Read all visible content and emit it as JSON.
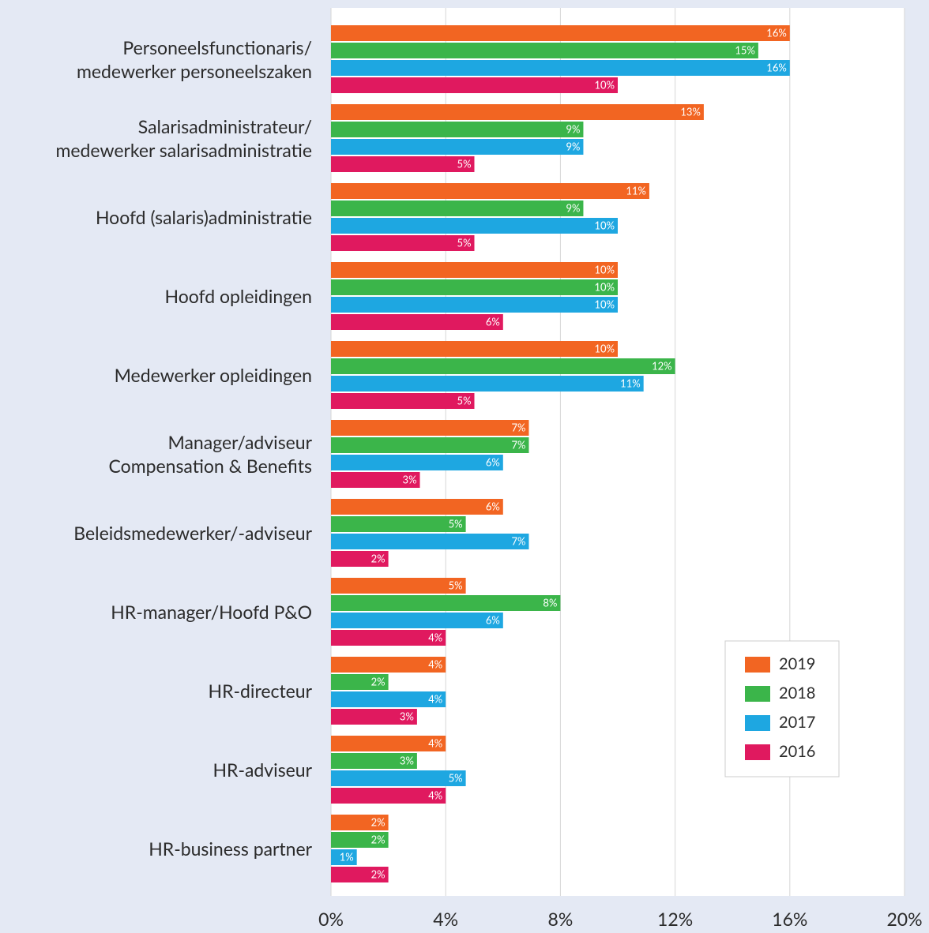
{
  "chart_data": {
    "type": "bar",
    "orientation": "horizontal",
    "categories": [
      "Personeelsfunctionaris/\nmedewerker personeelszaken",
      "Salarisadministrateur/\nmedewerker salarisadministratie",
      "Hoofd (salaris)administratie",
      "Hoofd opleidingen",
      "Medewerker opleidingen",
      "Manager/adviseur\nCompensation & Benefits",
      "Beleidsmedewerker/-adviseur",
      "HR-manager/Hoofd P&O",
      "HR-directeur",
      "HR-adviseur",
      "HR-business partner"
    ],
    "series": [
      {
        "name": "2019",
        "color": "#f26522",
        "values": [
          16.0,
          13.0,
          11.1,
          10.0,
          10.0,
          6.9,
          6.0,
          4.7,
          4.0,
          4.0,
          2.0
        ],
        "value_labels": [
          "16%",
          "13%",
          "11%",
          "10%",
          "10%",
          "7%",
          "6%",
          "5%",
          "4%",
          "4%",
          "2%"
        ]
      },
      {
        "name": "2018",
        "color": "#3bb54a",
        "values": [
          14.9,
          8.8,
          8.8,
          10.0,
          12.0,
          6.9,
          4.7,
          8.0,
          2.0,
          3.0,
          2.0
        ],
        "value_labels": [
          "15%",
          "9%",
          "9%",
          "10%",
          "12%",
          "7%",
          "5%",
          "8%",
          "2%",
          "3%",
          "2%"
        ]
      },
      {
        "name": "2017",
        "color": "#1ea7e1",
        "values": [
          16.0,
          8.8,
          10.0,
          10.0,
          10.9,
          6.0,
          6.9,
          6.0,
          4.0,
          4.7,
          0.9
        ],
        "value_labels": [
          "16%",
          "9%",
          "10%",
          "10%",
          "11%",
          "6%",
          "7%",
          "6%",
          "4%",
          "5%",
          "1%"
        ]
      },
      {
        "name": "2016",
        "color": "#e0195f",
        "values": [
          10.0,
          5.0,
          5.0,
          6.0,
          5.0,
          3.1,
          2.0,
          4.0,
          3.0,
          4.0,
          2.0
        ],
        "value_labels": [
          "10%",
          "5%",
          "5%",
          "6%",
          "5%",
          "3%",
          "2%",
          "4%",
          "3%",
          "4%",
          "2%"
        ]
      }
    ],
    "xlim": [
      0,
      20
    ],
    "xticks": [
      {
        "value": 0,
        "label": "0%"
      },
      {
        "value": 4,
        "label": "4%"
      },
      {
        "value": 8,
        "label": "8%"
      },
      {
        "value": 12,
        "label": "12%"
      },
      {
        "value": 16,
        "label": "16%"
      },
      {
        "value": 20,
        "label": "20%"
      }
    ],
    "grid": true,
    "legend": "lower right"
  }
}
